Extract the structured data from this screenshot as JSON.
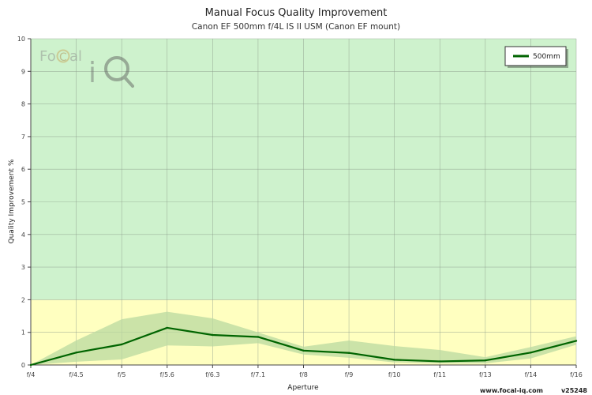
{
  "chart_data": {
    "type": "line",
    "title": "Manual Focus Quality Improvement",
    "subtitle": "Canon EF 500mm f/4L IS II USM (Canon EF mount)",
    "xlabel": "Aperture",
    "ylabel": "Quality Improvement %",
    "categories": [
      "f/4",
      "f/4.5",
      "f/5",
      "f/5.6",
      "f/6.3",
      "f/7.1",
      "f/8",
      "f/9",
      "f/10",
      "f/11",
      "f/13",
      "f/14",
      "f/16"
    ],
    "ylim": [
      0,
      10
    ],
    "yticks": [
      0,
      1,
      2,
      3,
      4,
      5,
      6,
      7,
      8,
      9,
      10
    ],
    "grid": true,
    "legend_position": "top-right",
    "bands": [
      {
        "from": 0,
        "to": 2,
        "color": "#ffffc0"
      },
      {
        "from": 2,
        "to": 10,
        "color": "#cef2cd"
      }
    ],
    "series": [
      {
        "name": "500mm",
        "color": "#006400",
        "values": [
          0.0,
          0.38,
          0.63,
          1.14,
          0.92,
          0.86,
          0.44,
          0.37,
          0.16,
          0.11,
          0.14,
          0.38,
          0.74
        ],
        "range_upper": [
          0.0,
          0.75,
          1.4,
          1.63,
          1.43,
          1.0,
          0.56,
          0.75,
          0.58,
          0.46,
          0.24,
          0.55,
          0.88
        ],
        "range_lower": [
          0.0,
          0.1,
          0.17,
          0.6,
          0.57,
          0.67,
          0.32,
          0.22,
          0.08,
          0.05,
          0.05,
          0.2,
          0.62
        ],
        "range_color": "#b9d9a0"
      }
    ]
  },
  "watermark": {
    "text_part1": "Fo",
    "text_part2": "al",
    "letter_c": "C",
    "letter_i": "i"
  },
  "footer": {
    "url": "www.focal-iq.com",
    "version": "v25248"
  }
}
